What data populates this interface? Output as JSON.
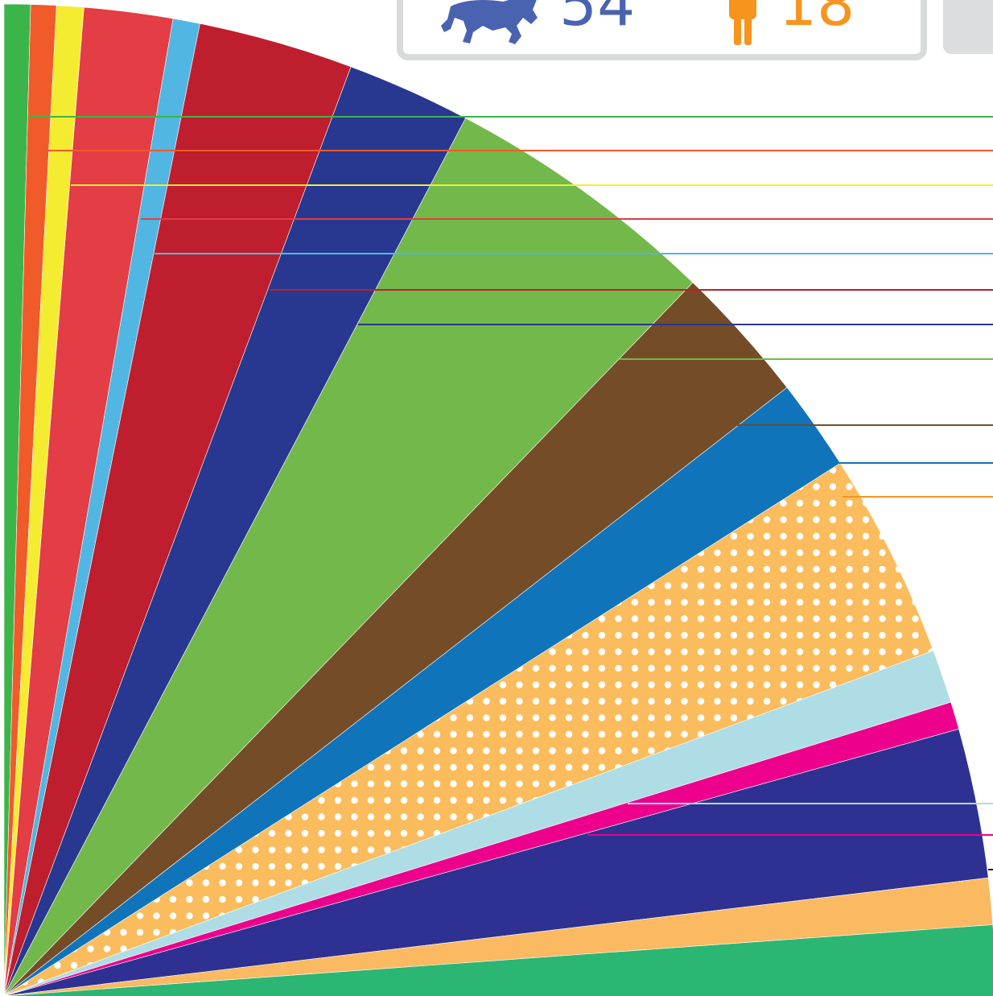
{
  "stats": {
    "horse_count": "54",
    "person_count": "18"
  }
}
